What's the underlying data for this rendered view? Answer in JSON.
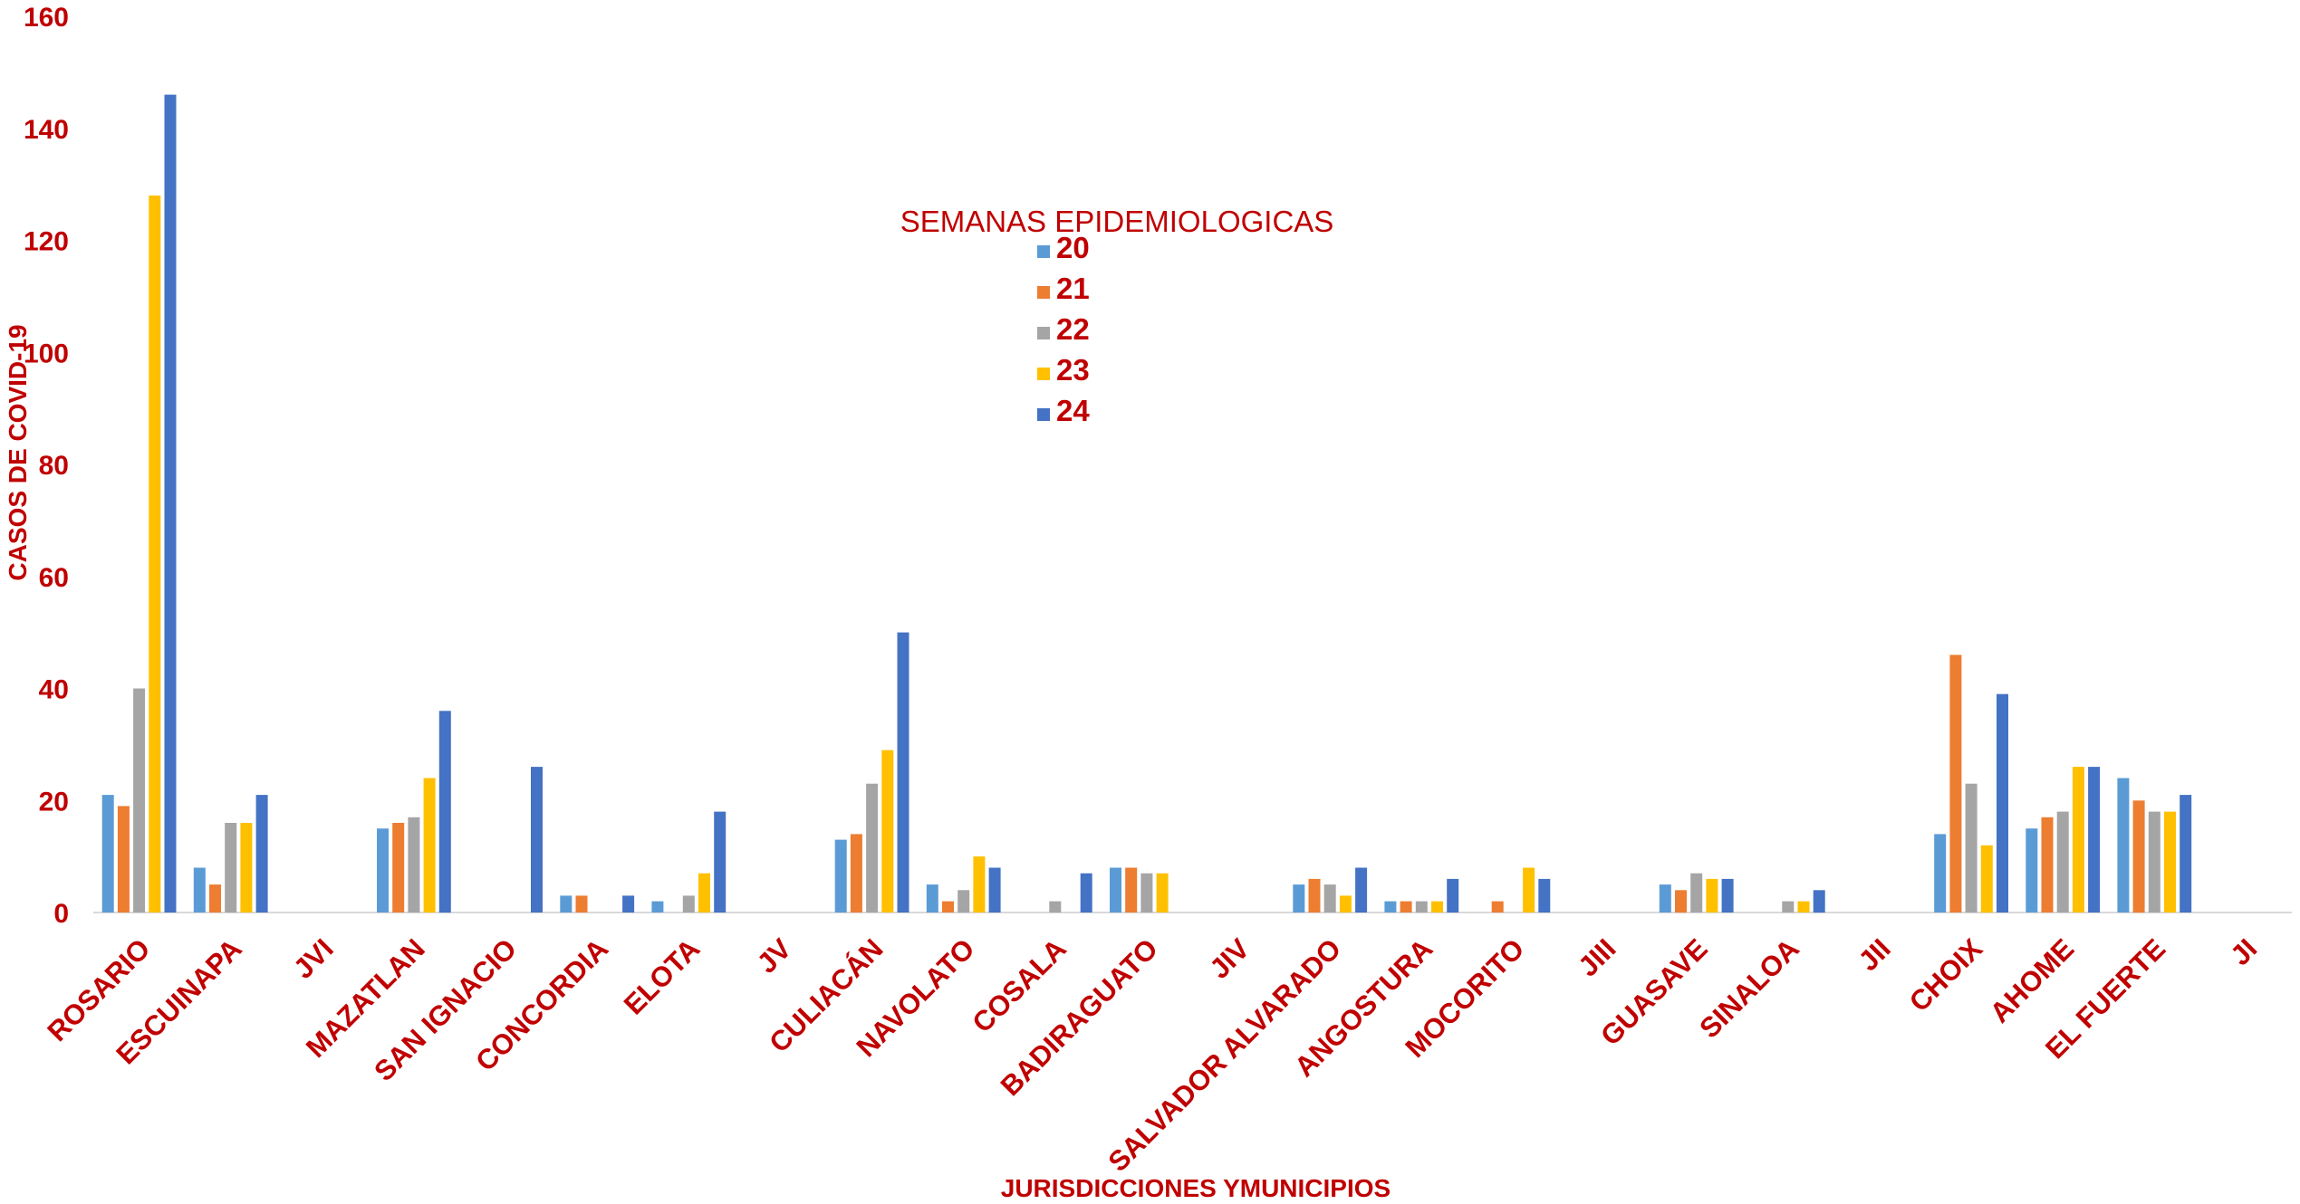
{
  "chart_data": {
    "type": "bar",
    "title": "",
    "xlabel": "JURISDICCIONES YMUNICIPIOS",
    "ylabel": "CASOS DE COVID-19",
    "ylim": [
      0,
      160
    ],
    "yticks": [
      0,
      20,
      40,
      60,
      80,
      100,
      120,
      140,
      160
    ],
    "grid": false,
    "legend": {
      "title": "SEMANAS EPIDEMIOLOGICAS",
      "placement": "top-center"
    },
    "categories": [
      "ROSARIO",
      "ESCUINAPA",
      "JVI",
      "MAZATLAN",
      "SAN IGNACIO",
      "CONCORDIA",
      "ELOTA",
      "JV",
      "CULIACÁN",
      "NAVOLATO",
      "COSALA",
      "BADIRAGUATO",
      "JIV",
      "SALVADOR ALVARADO",
      "ANGOSTURA",
      "MOCORITO",
      "JIII",
      "GUASAVE",
      "SINALOA",
      "JII",
      "CHOIX",
      "AHOME",
      "EL FUERTE",
      "JI"
    ],
    "series": [
      {
        "name": "20",
        "color": "#5b9bd5",
        "values": [
          21,
          8,
          0,
          15,
          0,
          3,
          2,
          0,
          13,
          5,
          0,
          8,
          0,
          5,
          2,
          0,
          0,
          5,
          0,
          0,
          14,
          15,
          24,
          0
        ]
      },
      {
        "name": "21",
        "color": "#ed7d31",
        "values": [
          19,
          5,
          0,
          16,
          0,
          3,
          0,
          0,
          14,
          2,
          0,
          8,
          0,
          6,
          2,
          2,
          0,
          4,
          0,
          0,
          46,
          17,
          20,
          0
        ]
      },
      {
        "name": "22",
        "color": "#a5a5a5",
        "values": [
          40,
          16,
          0,
          17,
          0,
          0,
          3,
          0,
          23,
          4,
          2,
          7,
          0,
          5,
          2,
          0,
          0,
          7,
          2,
          0,
          23,
          18,
          18,
          0
        ]
      },
      {
        "name": "23",
        "color": "#ffc000",
        "values": [
          128,
          16,
          0,
          24,
          0,
          0,
          7,
          0,
          29,
          10,
          0,
          7,
          0,
          3,
          2,
          8,
          0,
          6,
          2,
          0,
          12,
          26,
          18,
          0
        ]
      },
      {
        "name": "24",
        "color": "#4472c4",
        "values": [
          146,
          21,
          0,
          36,
          26,
          3,
          18,
          0,
          50,
          8,
          7,
          0,
          0,
          8,
          6,
          6,
          0,
          6,
          4,
          0,
          39,
          26,
          21,
          0
        ]
      }
    ]
  }
}
